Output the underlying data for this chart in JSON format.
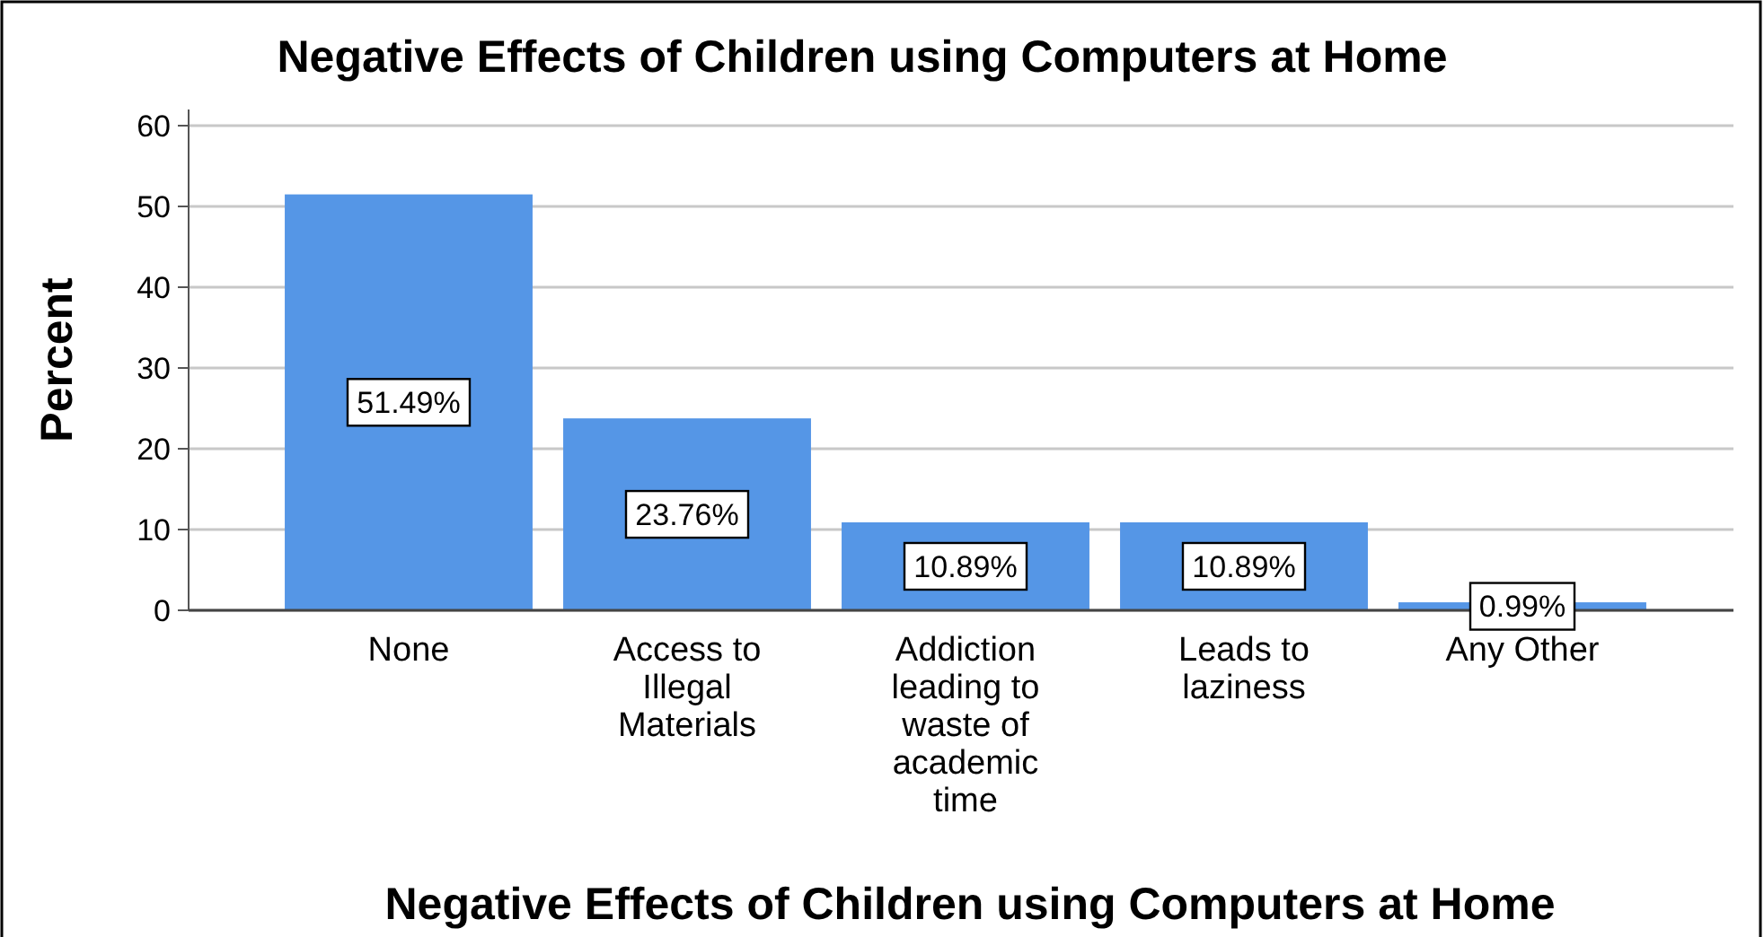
{
  "chart_data": {
    "type": "bar",
    "title": "Negative Effects of Children using Computers at Home",
    "xlabel": "Negative Effects of Children using Computers at Home",
    "ylabel": "Percent",
    "categories": [
      "None",
      "Access to Illegal Materials",
      "Addiction leading to waste of academic time",
      "Leads to laziness",
      "Any Other"
    ],
    "values": [
      51.49,
      23.76,
      10.89,
      10.89,
      0.99
    ],
    "value_labels": [
      "51.49%",
      "23.76%",
      "10.89%",
      "10.89%",
      "0.99%"
    ],
    "color": "#5596e6",
    "ylim": [
      0,
      62
    ],
    "yticks": [
      0,
      10,
      20,
      30,
      40,
      50,
      60
    ],
    "grid": "y"
  }
}
